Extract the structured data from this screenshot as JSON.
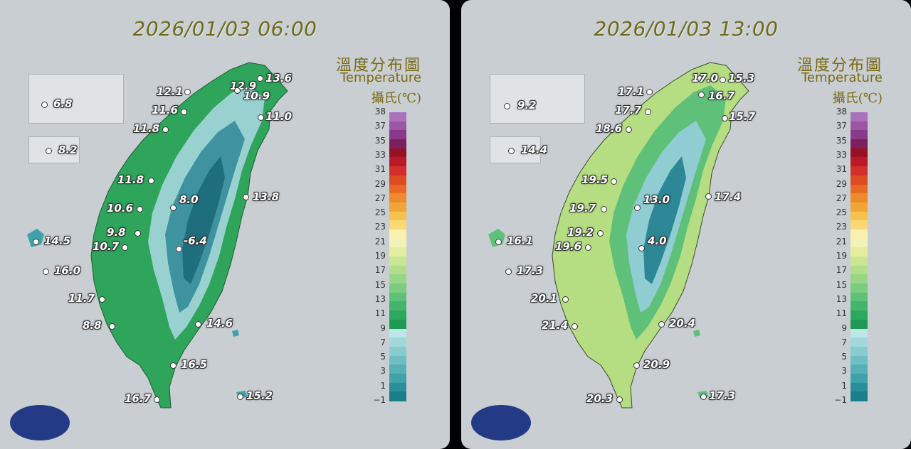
{
  "colors": {
    "scale": [
      "#1b7e8a",
      "#2a8f99",
      "#3fa1a9",
      "#56b0b6",
      "#6fbec2",
      "#89cccf",
      "#a1d9da",
      "#bfe6e8",
      "#1f9a54",
      "#2ca85f",
      "#44b56b",
      "#5ec177",
      "#7acd80",
      "#98d686",
      "#b2de8c",
      "#cbe693",
      "#e2ee9e",
      "#f1f2b8",
      "#faf0b0",
      "#f8d975",
      "#f6c14d",
      "#f2a537",
      "#ed8a2a",
      "#e66a26",
      "#dd4b22",
      "#d22e2a",
      "#b81a28",
      "#981024",
      "#7c1f5c",
      "#8a3a8a",
      "#9c56a6",
      "#aa72bb"
    ]
  },
  "legend": {
    "title_zh": "溫度分布圖",
    "title_en": "Temperature",
    "unit": "攝氏(℃)",
    "ticks": [
      "38",
      "37",
      "35",
      "33",
      "31",
      "29",
      "27",
      "25",
      "23",
      "21",
      "19",
      "17",
      "15",
      "13",
      "11",
      "9",
      "7",
      "5",
      "3",
      "1",
      "−1"
    ]
  },
  "panels": [
    {
      "timestamp": "2026/01/03 06:00",
      "stations": [
        {
          "id": "s1",
          "value": "12.9"
        },
        {
          "id": "s2",
          "value": "13.6"
        },
        {
          "id": "s3",
          "value": "12.1"
        },
        {
          "id": "s4",
          "value": "10.9"
        },
        {
          "id": "s5",
          "value": "11.6"
        },
        {
          "id": "s6",
          "value": "11.0"
        },
        {
          "id": "s7",
          "value": "11.8"
        },
        {
          "id": "s8",
          "value": "6.8"
        },
        {
          "id": "s9",
          "value": "8.2"
        },
        {
          "id": "s10",
          "value": "11.8"
        },
        {
          "id": "s11",
          "value": "8.0"
        },
        {
          "id": "s12",
          "value": "13.8"
        },
        {
          "id": "s13",
          "value": "10.6"
        },
        {
          "id": "s14",
          "value": "9.8"
        },
        {
          "id": "s15",
          "value": "14.5"
        },
        {
          "id": "s16",
          "value": "-6.4"
        },
        {
          "id": "s17",
          "value": "10.7"
        },
        {
          "id": "s18",
          "value": "16.0"
        },
        {
          "id": "s19",
          "value": "11.7"
        },
        {
          "id": "s20",
          "value": "8.8"
        },
        {
          "id": "s21",
          "value": "14.6"
        },
        {
          "id": "s22",
          "value": "16.5"
        },
        {
          "id": "s23",
          "value": "16.7"
        },
        {
          "id": "s24",
          "value": "15.2"
        }
      ]
    },
    {
      "timestamp": "2026/01/03 13:00",
      "stations": [
        {
          "id": "s1",
          "value": "17.0"
        },
        {
          "id": "s2",
          "value": "15.3"
        },
        {
          "id": "s3",
          "value": "17.1"
        },
        {
          "id": "s4",
          "value": "16.7"
        },
        {
          "id": "s5",
          "value": "17.7"
        },
        {
          "id": "s6",
          "value": "15.7"
        },
        {
          "id": "s7",
          "value": "18.6"
        },
        {
          "id": "s8",
          "value": "9.2"
        },
        {
          "id": "s9",
          "value": "14.4"
        },
        {
          "id": "s10",
          "value": "19.5"
        },
        {
          "id": "s11",
          "value": "13.0"
        },
        {
          "id": "s12",
          "value": "17.4"
        },
        {
          "id": "s13",
          "value": "19.7"
        },
        {
          "id": "s14",
          "value": "19.2"
        },
        {
          "id": "s15",
          "value": "16.1"
        },
        {
          "id": "s16",
          "value": "4.0"
        },
        {
          "id": "s17",
          "value": "19.6"
        },
        {
          "id": "s18",
          "value": "17.3"
        },
        {
          "id": "s19",
          "value": "20.1"
        },
        {
          "id": "s20",
          "value": "21.4"
        },
        {
          "id": "s21",
          "value": "20.4"
        },
        {
          "id": "s22",
          "value": "20.9"
        },
        {
          "id": "s23",
          "value": "20.3"
        },
        {
          "id": "s24",
          "value": "17.3"
        }
      ]
    }
  ]
}
